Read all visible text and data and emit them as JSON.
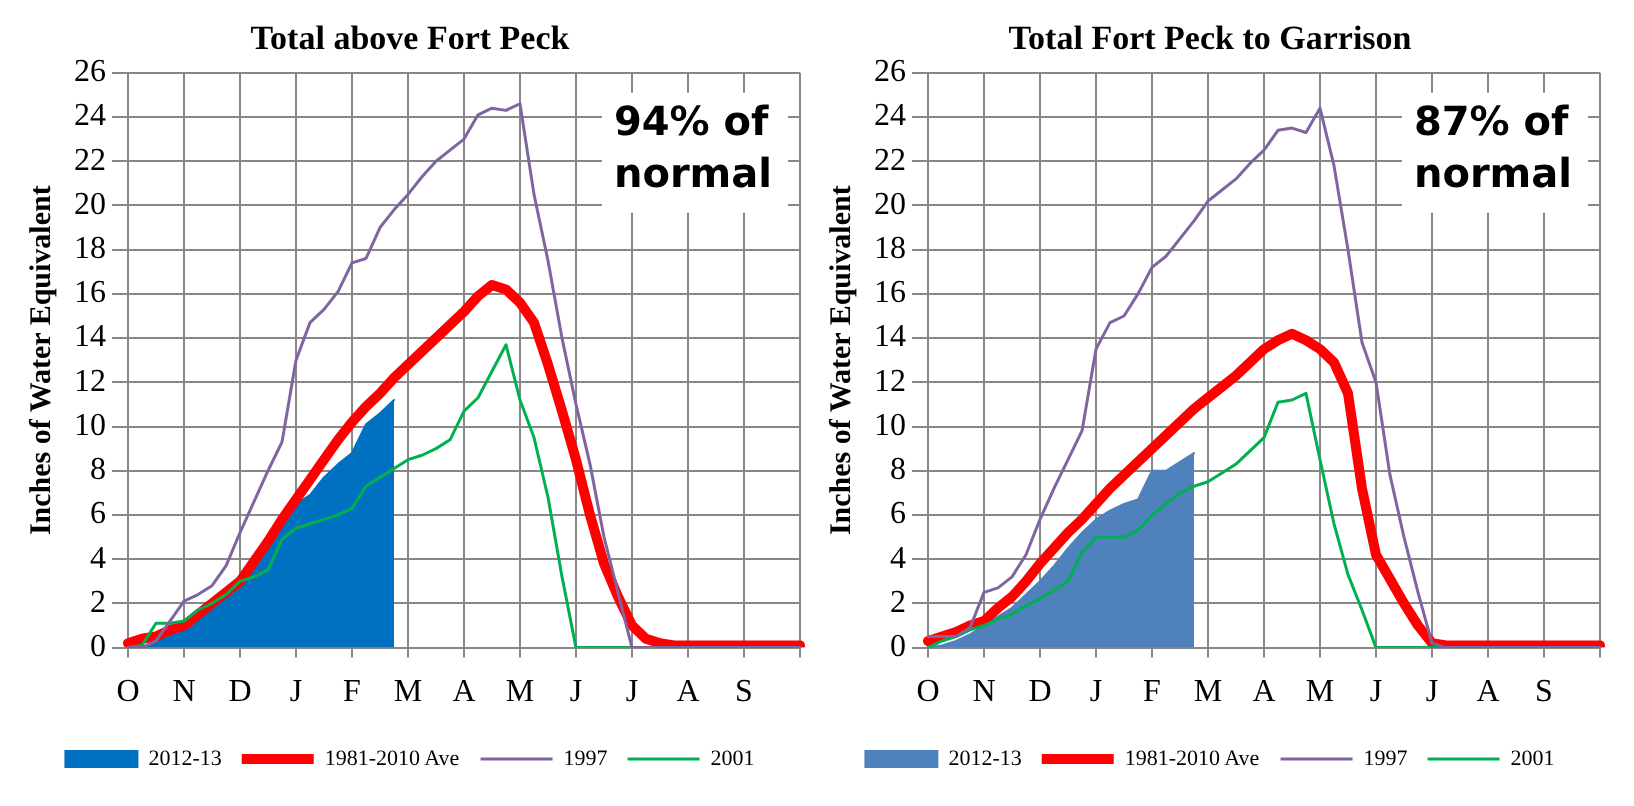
{
  "chart_data": [
    {
      "type": "line",
      "title": "Total above Fort Peck",
      "ylabel": "Inches of Water Equivalent",
      "categories": [
        "O",
        null,
        null,
        null,
        "N",
        null,
        null,
        null,
        "D",
        null,
        null,
        null,
        "J",
        null,
        null,
        null,
        "F",
        null,
        null,
        null,
        "M",
        null,
        null,
        null,
        "A",
        null,
        null,
        null,
        "M",
        null,
        null,
        null,
        "J",
        null,
        null,
        null,
        "J",
        null,
        null,
        null,
        "A",
        null,
        null,
        null,
        "S",
        null,
        null,
        null,
        null
      ],
      "ylim": [
        0,
        26
      ],
      "yticks": [
        0,
        2,
        4,
        6,
        8,
        10,
        12,
        14,
        16,
        18,
        20,
        22,
        24,
        26
      ],
      "grid": true,
      "legend": "bottom",
      "annotations": [
        "94% of normal"
      ],
      "series": [
        {
          "name": "2012-13",
          "type": "area",
          "color": "#0070c0",
          "values": [
            0,
            0,
            0.2,
            0.6,
            0.8,
            1.2,
            1.9,
            2.5,
            3.2,
            3.9,
            4.6,
            5.5,
            6.5,
            6.9,
            7.7,
            8.3,
            8.8,
            10.1,
            10.6,
            11.2,
            null,
            null,
            null,
            null,
            null,
            null,
            null,
            null,
            null,
            null,
            null,
            null,
            null,
            null,
            null,
            null,
            null,
            null,
            null,
            null,
            null,
            null,
            null,
            null,
            null,
            null,
            null,
            null,
            null
          ]
        },
        {
          "name": "1981-2010 Ave",
          "color": "#ff0000",
          "values": [
            0.2,
            0.4,
            0.5,
            0.8,
            1,
            1.5,
            2,
            2.5,
            3,
            3.9,
            4.8,
            5.8,
            6.7,
            7.6,
            8.5,
            9.4,
            10.2,
            10.9,
            11.5,
            12.2,
            12.8,
            13.4,
            14,
            14.6,
            15.2,
            15.9,
            16.4,
            16.2,
            15.6,
            14.7,
            12.8,
            10.7,
            8.5,
            6,
            3.8,
            2.3,
            1,
            0.4,
            0.2,
            0.1,
            0.1,
            0.1,
            0.1,
            0.1,
            0.1,
            0.1,
            0.1,
            0.1,
            0.1
          ]
        },
        {
          "name": "1997",
          "color": "#8064a2",
          "values": [
            0,
            0,
            0.3,
            1.2,
            2.1,
            2.4,
            2.8,
            3.7,
            5.2,
            6.6,
            8,
            9.3,
            13,
            14.7,
            15.3,
            16.1,
            17.4,
            17.6,
            19,
            19.8,
            20.5,
            21.3,
            22,
            22.5,
            23,
            24.1,
            24.4,
            24.3,
            24.6,
            20.5,
            17.5,
            14,
            11,
            8.3,
            5,
            2.5,
            0,
            0,
            0,
            0,
            0,
            0,
            0,
            0,
            0,
            0,
            0,
            0,
            0
          ]
        },
        {
          "name": "2001",
          "color": "#00b050",
          "values": [
            0,
            0.1,
            1.1,
            1.1,
            1.2,
            1.7,
            2,
            2.4,
            3,
            3.2,
            3.5,
            4.9,
            5.4,
            5.6,
            5.8,
            6,
            6.3,
            7.3,
            7.7,
            8.1,
            8.5,
            8.7,
            9,
            9.4,
            10.7,
            11.3,
            12.5,
            13.7,
            11.2,
            9.5,
            6.8,
            3.2,
            0,
            0,
            0,
            0,
            0,
            0,
            null,
            null,
            null,
            null,
            null,
            null,
            null,
            null,
            null,
            null,
            null
          ]
        }
      ]
    },
    {
      "type": "line",
      "title": "Total Fort Peck to Garrison",
      "ylabel": "Inches of Water Equivalent",
      "categories": [
        "O",
        null,
        null,
        null,
        "N",
        null,
        null,
        null,
        "D",
        null,
        null,
        null,
        "J",
        null,
        null,
        null,
        "F",
        null,
        null,
        null,
        "M",
        null,
        null,
        null,
        "A",
        null,
        null,
        null,
        "M",
        null,
        null,
        null,
        "J",
        null,
        null,
        null,
        "J",
        null,
        null,
        null,
        "A",
        null,
        null,
        null,
        "S",
        null,
        null,
        null,
        null
      ],
      "ylim": [
        0,
        26
      ],
      "yticks": [
        0,
        2,
        4,
        6,
        8,
        10,
        12,
        14,
        16,
        18,
        20,
        22,
        24,
        26
      ],
      "grid": true,
      "legend": "bottom",
      "annotations": [
        "87% of normal"
      ],
      "series": [
        {
          "name": "2012-13",
          "type": "area",
          "color": "#4f81bd",
          "values": [
            0,
            0.1,
            0.3,
            0.6,
            1,
            1.4,
            1.8,
            2.4,
            3,
            3.7,
            4.5,
            5.2,
            5.8,
            6.2,
            6.5,
            6.7,
            8,
            8,
            8.4,
            8.8,
            null,
            null,
            null,
            null,
            null,
            null,
            null,
            null,
            null,
            null,
            null,
            null,
            null,
            null,
            null,
            null,
            null,
            null,
            null,
            null,
            null,
            null,
            null,
            null,
            null,
            null,
            null,
            null,
            null
          ]
        },
        {
          "name": "1981-2010 Ave",
          "color": "#ff0000",
          "values": [
            0.3,
            0.5,
            0.7,
            1,
            1.2,
            1.8,
            2.3,
            3,
            3.8,
            4.5,
            5.2,
            5.8,
            6.5,
            7.2,
            7.8,
            8.4,
            9,
            9.6,
            10.2,
            10.8,
            11.3,
            11.8,
            12.3,
            12.9,
            13.5,
            13.9,
            14.2,
            13.9,
            13.5,
            12.9,
            11.5,
            7.2,
            4.2,
            3.1,
            2,
            1,
            0.2,
            0.1,
            0.1,
            0.1,
            0.1,
            0.1,
            0.1,
            0.1,
            0.1,
            0.1,
            0.1,
            0.1,
            0.1
          ]
        },
        {
          "name": "1997",
          "color": "#8064a2",
          "values": [
            0.5,
            0.5,
            0.5,
            0.9,
            2.5,
            2.7,
            3.2,
            4.2,
            5.8,
            7.2,
            8.5,
            9.8,
            13.5,
            14.7,
            15,
            16,
            17.2,
            17.7,
            18.5,
            19.3,
            20.2,
            20.7,
            21.2,
            21.9,
            22.5,
            23.4,
            23.5,
            23.3,
            24.4,
            21.8,
            18,
            13.8,
            12,
            7.8,
            5,
            2.5,
            0.2,
            0,
            0,
            0,
            0,
            0,
            0,
            0,
            0,
            0,
            0,
            0,
            0
          ]
        },
        {
          "name": "2001",
          "color": "#00b050",
          "values": [
            0,
            0.3,
            0.5,
            0.8,
            1,
            1.3,
            1.5,
            1.9,
            2.2,
            2.6,
            3,
            4.3,
            5,
            5,
            5,
            5.3,
            6,
            6.5,
            7,
            7.3,
            7.5,
            7.9,
            8.3,
            8.9,
            9.5,
            11.1,
            11.2,
            11.5,
            8.5,
            5.6,
            3.3,
            1.7,
            0,
            0,
            0,
            0,
            0,
            0,
            0,
            null,
            null,
            null,
            null,
            null,
            null,
            null,
            null,
            null,
            null
          ]
        }
      ]
    }
  ]
}
